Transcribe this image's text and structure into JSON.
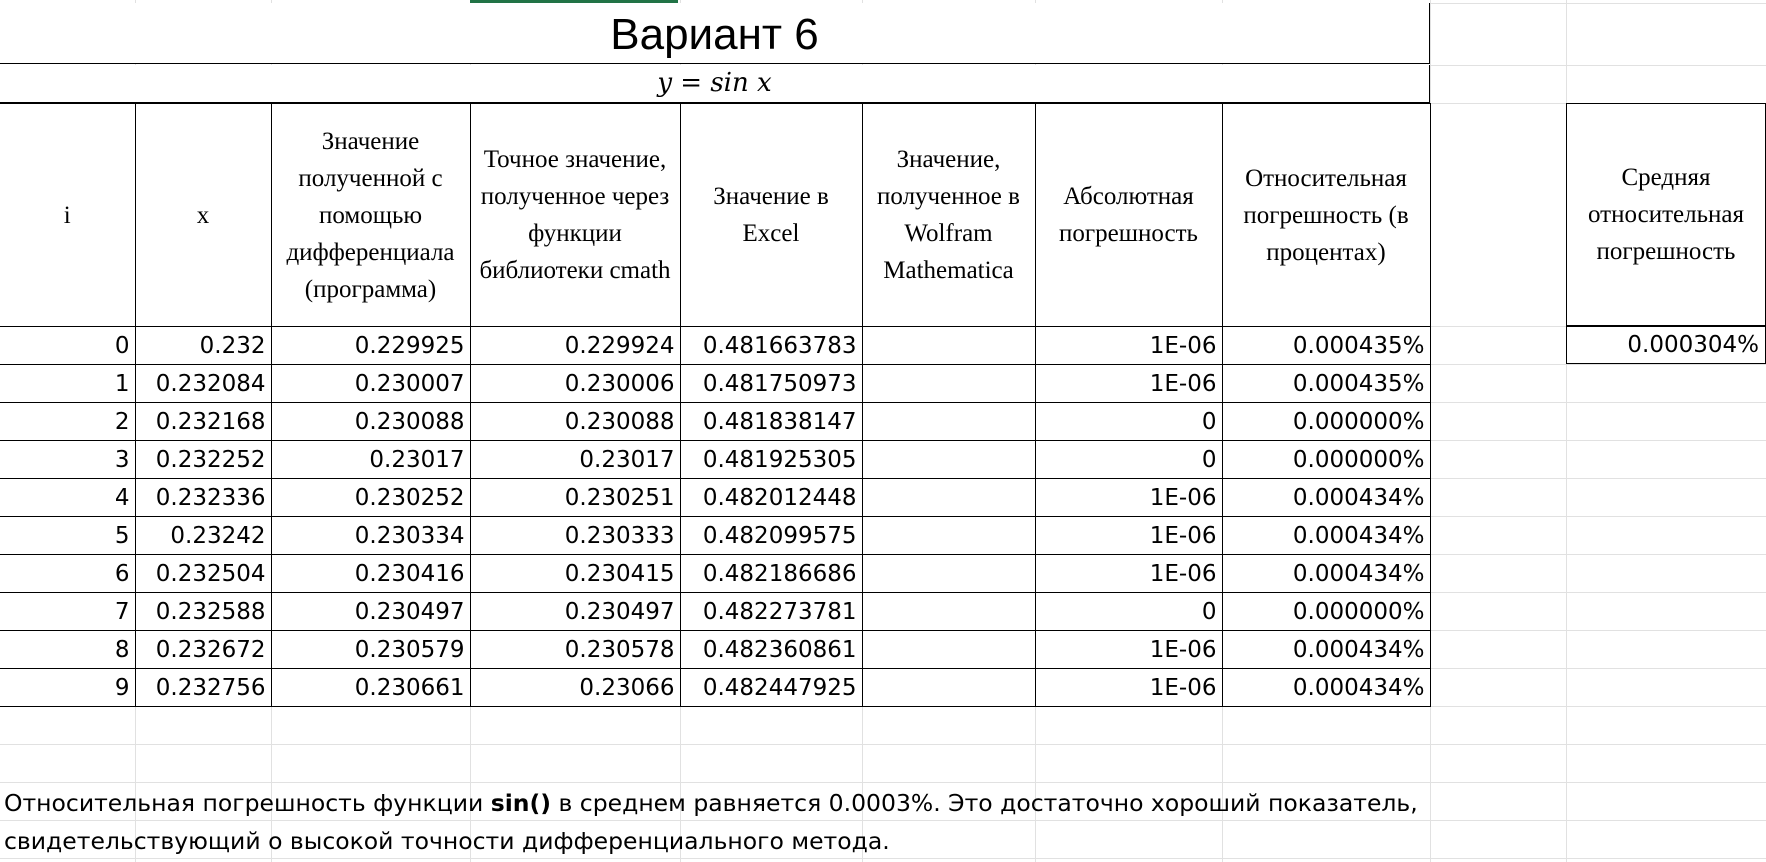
{
  "title": "Вариант 6",
  "formula": "y = sin x",
  "table": {
    "headers": [
      "i",
      "x",
      "Значение полученной с помощью дифференциала (программа)",
      "Точное значение, полученное через функции библиотеки cmath",
      "Значение в Excel",
      "Значение, полученное в Wolfram Mathematica",
      "Абсолютная погрешность",
      "Относительная погрешность (в процентах)"
    ],
    "rows": [
      [
        "0",
        "0.232",
        "0.229925",
        "0.229924",
        "0.481663783",
        "",
        "1E-06",
        "0.000435%"
      ],
      [
        "1",
        "0.232084",
        "0.230007",
        "0.230006",
        "0.481750973",
        "",
        "1E-06",
        "0.000435%"
      ],
      [
        "2",
        "0.232168",
        "0.230088",
        "0.230088",
        "0.481838147",
        "",
        "0",
        "0.000000%"
      ],
      [
        "3",
        "0.232252",
        "0.23017",
        "0.23017",
        "0.481925305",
        "",
        "0",
        "0.000000%"
      ],
      [
        "4",
        "0.232336",
        "0.230252",
        "0.230251",
        "0.482012448",
        "",
        "1E-06",
        "0.000434%"
      ],
      [
        "5",
        "0.23242",
        "0.230334",
        "0.230333",
        "0.482099575",
        "",
        "1E-06",
        "0.000434%"
      ],
      [
        "6",
        "0.232504",
        "0.230416",
        "0.230415",
        "0.482186686",
        "",
        "1E-06",
        "0.000434%"
      ],
      [
        "7",
        "0.232588",
        "0.230497",
        "0.230497",
        "0.482273781",
        "",
        "0",
        "0.000000%"
      ],
      [
        "8",
        "0.232672",
        "0.230579",
        "0.230578",
        "0.482360861",
        "",
        "1E-06",
        "0.000434%"
      ],
      [
        "9",
        "0.232756",
        "0.230661",
        "0.23066",
        "0.482447925",
        "",
        "1E-06",
        "0.000434%"
      ]
    ]
  },
  "average": {
    "header": "Средняя относительная погрешность",
    "value": "0.000304%"
  },
  "conclusion": {
    "before": "Относительная погрешность функции ",
    "bold": "sin()",
    "after": " в среднем равняется 0.0003%. Это достаточно хороший показатель, свидетельствующий о высокой точности дифференциального метода."
  }
}
